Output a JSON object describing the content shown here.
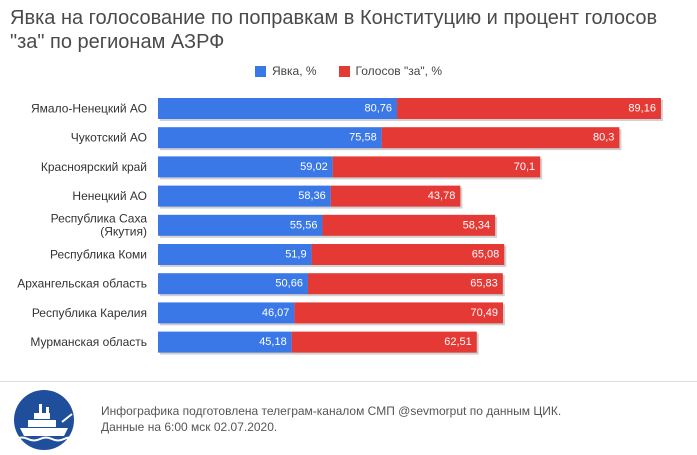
{
  "title": "Явка на голосование по поправкам в Конституцию и процент голосов \"за\" по регионам АЗРФ",
  "legend": [
    {
      "label": "Явка, %",
      "color": "#3b78e7"
    },
    {
      "label": "Голосов \"за\", %",
      "color": "#e53935"
    }
  ],
  "chart_data": {
    "type": "bar",
    "orientation": "horizontal",
    "stacked": true,
    "title": "Явка на голосование по поправкам в Конституцию и процент голосов \"за\" по регионам АЗРФ",
    "legend_position": "top",
    "grid": false,
    "categories": [
      [
        "Ямало-Ненецкий АО"
      ],
      [
        "Чукотский АО"
      ],
      [
        "Красноярский край"
      ],
      [
        "Ненецкий АО"
      ],
      [
        "Республика Саха",
        "(Якутия)"
      ],
      [
        "Республика Коми"
      ],
      [
        "Архангельская область"
      ],
      [
        "Республика Карелия"
      ],
      [
        "Мурманская область"
      ]
    ],
    "series": [
      {
        "name": "Явка, %",
        "color": "#3b78e7",
        "values": [
          80.76,
          75.58,
          59.02,
          58.36,
          55.56,
          51.9,
          50.66,
          46.07,
          45.18
        ]
      },
      {
        "name": "Голосов \"за\", %",
        "color": "#e53935",
        "values": [
          89.16,
          80.3,
          70.1,
          43.78,
          58.34,
          65.08,
          65.83,
          70.49,
          62.51
        ]
      }
    ],
    "data_labels": [
      [
        "80,76",
        "75,58",
        "59,02",
        "58,36",
        "55,56",
        "51,9",
        "50,66",
        "46,07",
        "45,18"
      ],
      [
        "89,16",
        "80,3",
        "70,1",
        "43,78",
        "58,34",
        "65,08",
        "65,83",
        "70,49",
        "62,51"
      ]
    ]
  },
  "footer": {
    "line1": "Инфографика подготовлена телеграм-каналом СМП @sevmorput по данным ЦИК.",
    "line2": "Данные на 6:00 мск 02.07.2020."
  }
}
